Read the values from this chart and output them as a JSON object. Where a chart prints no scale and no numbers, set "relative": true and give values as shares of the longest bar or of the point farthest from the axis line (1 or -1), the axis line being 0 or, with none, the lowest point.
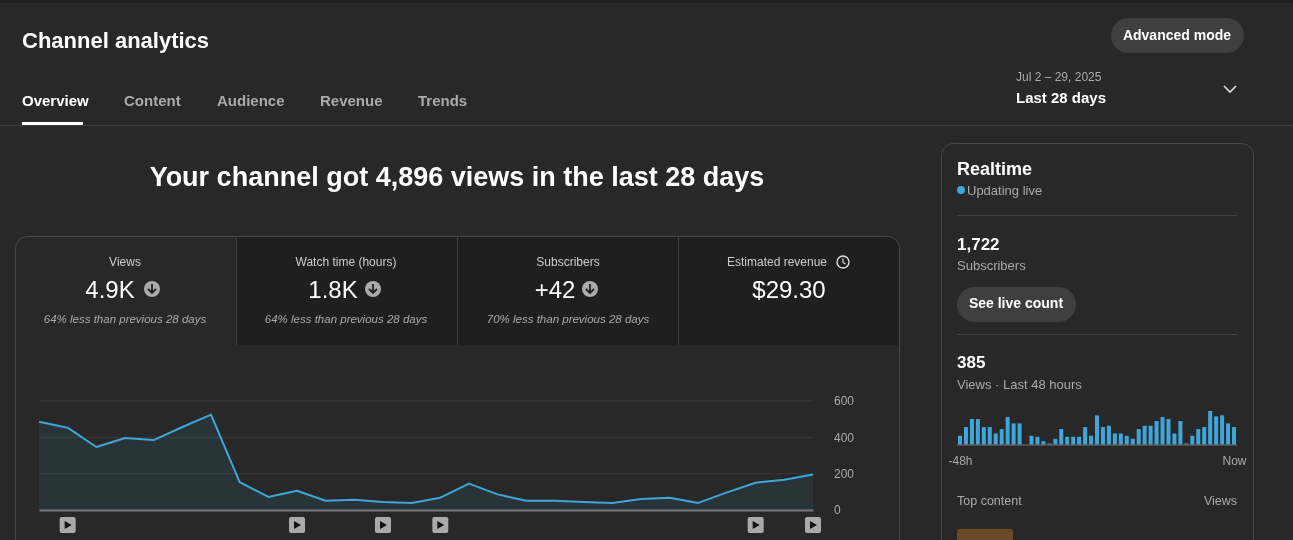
{
  "chart_data": [
    {
      "type": "other",
      "annotations": [
        "Channel analytics",
        "Advanced mode",
        "Overview",
        "Content",
        "Audience",
        "Revenue",
        "Trends",
        "Jul 2 – 29, 2025",
        "Last 28 days",
        "Views",
        "4.9K",
        "64% less than previous 28 days",
        "Watch time (hours)",
        "1.8K",
        "64% less than previous 28 days",
        "Subscribers",
        "+42",
        "70% less than previous 28 days",
        "Estimated revenue",
        "$29.30",
        "Realtime",
        "Updating live",
        "1,722",
        "Subscribers",
        "See live count",
        "385",
        "Views · Last 48 hours",
        "Top content",
        "Views"
      ]
    },
    {
      "type": "area",
      "title": "Your channel got 4,896 views in the last 28 days",
      "categories": [
        null,
        null,
        null,
        null,
        null,
        null,
        null,
        null,
        null,
        null,
        null,
        null,
        null,
        null,
        null,
        null,
        null,
        null,
        null,
        null,
        null,
        null,
        null,
        null,
        null,
        null,
        null,
        null
      ],
      "values": [
        486,
        453,
        347,
        396,
        385,
        457,
        525,
        154,
        72,
        106,
        51,
        57,
        44,
        39,
        68,
        145,
        86,
        51,
        51,
        44,
        39,
        60,
        68,
        39,
        97,
        150,
        167,
        196
      ],
      "color": "#3ea6d8",
      "ylim": [
        0,
        600
      ],
      "yticks": [
        0,
        200,
        400,
        600
      ],
      "grid": "y"
    },
    {
      "type": "bar",
      "relative": true,
      "categories": [
        "-48h",
        null,
        null,
        null,
        null,
        null,
        null,
        null,
        null,
        null,
        null,
        null,
        null,
        null,
        null,
        null,
        null,
        null,
        null,
        null,
        null,
        null,
        null,
        null,
        null,
        null,
        null,
        null,
        null,
        null,
        null,
        null,
        null,
        null,
        null,
        null,
        null,
        null,
        null,
        null,
        null,
        null,
        null,
        null,
        null,
        null,
        "Now"
      ],
      "values": [
        0.26,
        0.52,
        0.76,
        0.76,
        0.52,
        0.52,
        0.33,
        0.46,
        0.82,
        0.63,
        0.63,
        0,
        0.26,
        0.23,
        0.1,
        0.03,
        0.17,
        0.46,
        0.23,
        0.23,
        0.23,
        0.52,
        0.26,
        0.87,
        0.52,
        0.56,
        0.33,
        0.33,
        0.26,
        0.17,
        0.46,
        0.56,
        0.56,
        0.7,
        0.82,
        0.76,
        0.33,
        0.7,
        0.03,
        0.26,
        0.46,
        0.52,
        1,
        0.84,
        0.87,
        0.63,
        0.52
      ],
      "color": "#3ea6d8"
    }
  ]
}
